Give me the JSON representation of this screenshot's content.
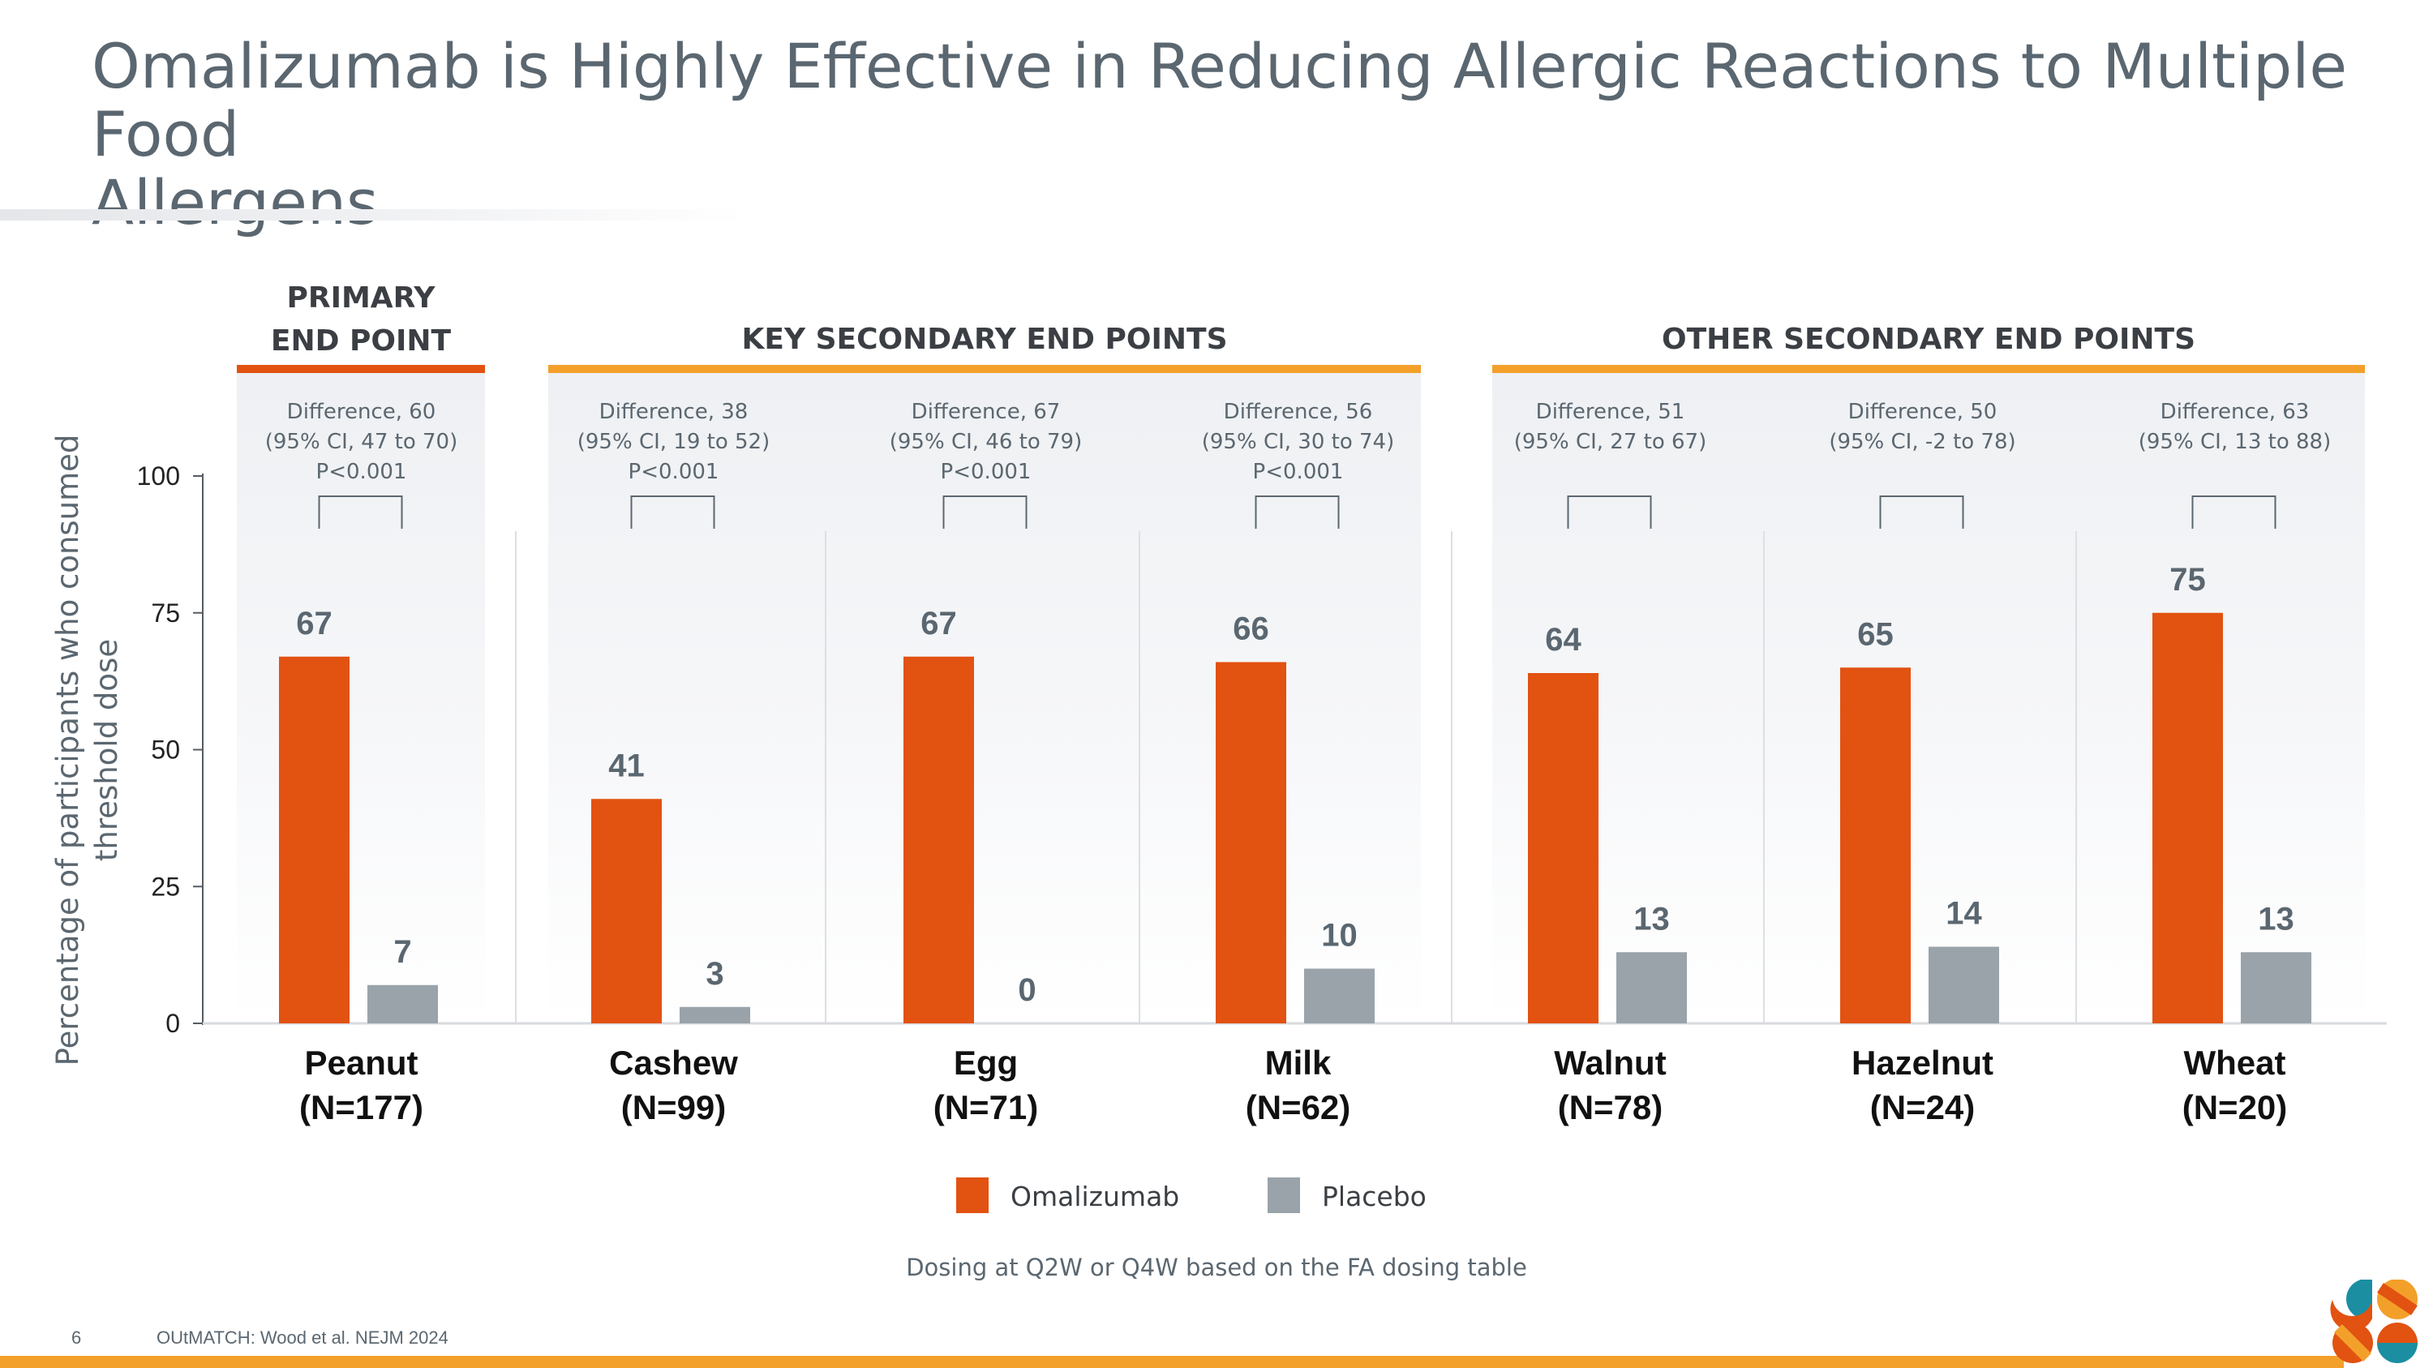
{
  "slide": {
    "title": "Omalizumab is Highly Effective in Reducing Allergic Reactions to Multiple Food Allergens",
    "title_line1": "Omalizumab is Highly Effective in Reducing Allergic Reactions to Multiple Food",
    "title_line2": "Allergens",
    "page_number": "6",
    "source": "OUtMATCH: Wood et al. NEJM 2024",
    "footnote": "Dosing at Q2W or Q4W based on the FA dosing table"
  },
  "groups": [
    {
      "label_line1": "PRIMARY",
      "label_line2": "END POINT",
      "color": "#e25211",
      "start": 0,
      "end": 0
    },
    {
      "label_line1": "KEY SECONDARY END POINTS",
      "label_line2": "",
      "color": "#f3a02b",
      "start": 1,
      "end": 3
    },
    {
      "label_line1": "OTHER SECONDARY END POINTS",
      "label_line2": "",
      "color": "#f3a02b",
      "start": 4,
      "end": 6
    }
  ],
  "chart_data": {
    "type": "bar",
    "ylabel": "Percentage of participants who consumed threshold dose",
    "ylabel_line1": "Percentage of participants who consumed",
    "ylabel_line2": "threshold dose",
    "ylim": [
      0,
      100
    ],
    "yticks": [
      0,
      25,
      50,
      75,
      100
    ],
    "categories": [
      "Peanut",
      "Cashew",
      "Egg",
      "Milk",
      "Walnut",
      "Hazelnut",
      "Wheat"
    ],
    "n_labels": [
      "(N=177)",
      "(N=99)",
      "(N=71)",
      "(N=62)",
      "(N=78)",
      "(N=24)",
      "(N=20)"
    ],
    "series": [
      {
        "name": "Omalizumab",
        "color": "#e25211",
        "values": [
          67,
          41,
          67,
          66,
          64,
          65,
          75
        ]
      },
      {
        "name": "Placebo",
        "color": "#9aa3aa",
        "values": [
          7,
          3,
          0,
          10,
          13,
          14,
          13
        ]
      }
    ],
    "differences": [
      {
        "line1": "Difference, 60",
        "line2": "(95% CI, 47 to 70)",
        "line3": "P<0.001"
      },
      {
        "line1": "Difference, 38",
        "line2": "(95% CI, 19 to 52)",
        "line3": "P<0.001"
      },
      {
        "line1": "Difference, 67",
        "line2": "(95% CI, 46 to 79)",
        "line3": "P<0.001"
      },
      {
        "line1": "Difference, 56",
        "line2": "(95% CI, 30 to 74)",
        "line3": "P<0.001"
      },
      {
        "line1": "Difference, 51",
        "line2": "(95% CI, 27 to 67)",
        "line3": ""
      },
      {
        "line1": "Difference, 50",
        "line2": "(95% CI, -2 to 78)",
        "line3": ""
      },
      {
        "line1": "Difference, 63",
        "line2": "(95% CI, 13 to 88)",
        "line3": ""
      }
    ],
    "legend": [
      "Omalizumab",
      "Placebo"
    ]
  },
  "colors": {
    "title": "#5b6770",
    "omalizumab": "#e25211",
    "placebo": "#9aa3aa",
    "accent": "#f3a02b",
    "value_label": "#5b6770"
  },
  "logo": {
    "icon": "logo-mark-icon"
  }
}
